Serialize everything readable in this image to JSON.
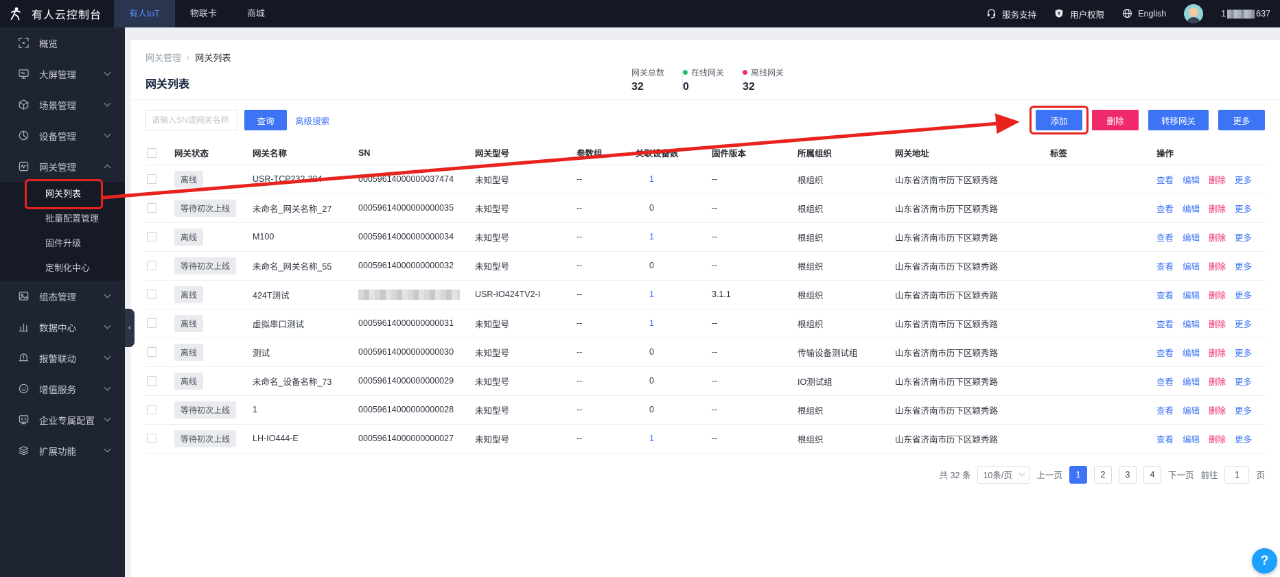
{
  "topbar": {
    "brand": "有人云控制台",
    "tabs": [
      {
        "label": "有人IoT",
        "active": true
      },
      {
        "label": "物联卡",
        "active": false
      },
      {
        "label": "商城",
        "active": false
      }
    ],
    "links": [
      {
        "label": "服务支持",
        "icon": "headset-icon"
      },
      {
        "label": "用户权限",
        "icon": "shield-icon"
      },
      {
        "label": "English",
        "icon": "globe-icon"
      }
    ],
    "user": {
      "phone_prefix": "1",
      "phone_suffix": "637",
      "phone_masked": true
    }
  },
  "sidebar": {
    "items": [
      {
        "id": "overview",
        "label": "概览",
        "icon": "overview-icon",
        "children": null
      },
      {
        "id": "bigscreen",
        "label": "大屏管理",
        "icon": "screen-icon",
        "children": null,
        "collapsible": true
      },
      {
        "id": "scene",
        "label": "场景管理",
        "icon": "scene-icon",
        "children": null,
        "collapsible": true
      },
      {
        "id": "device",
        "label": "设备管理",
        "icon": "device-icon",
        "children": null,
        "collapsible": true
      },
      {
        "id": "gateway",
        "label": "网关管理",
        "icon": "gateway-icon",
        "expanded": true,
        "collapsible": true,
        "children": [
          {
            "id": "gateway-list",
            "label": "网关列表",
            "active": true,
            "annotated": true
          },
          {
            "id": "batch-config",
            "label": "批量配置管理"
          },
          {
            "id": "firmware-upgrade",
            "label": "固件升级"
          },
          {
            "id": "custom-center",
            "label": "定制化中心"
          }
        ]
      },
      {
        "id": "scada",
        "label": "组态管理",
        "icon": "scada-icon",
        "children": null,
        "collapsible": true
      },
      {
        "id": "data-center",
        "label": "数据中心",
        "icon": "data-icon",
        "children": null,
        "collapsible": true
      },
      {
        "id": "alarm",
        "label": "报警联动",
        "icon": "alarm-icon",
        "children": null,
        "collapsible": true
      },
      {
        "id": "vas",
        "label": "增值服务",
        "icon": "vas-icon",
        "children": null,
        "collapsible": true
      },
      {
        "id": "enterprise",
        "label": "企业专属配置",
        "icon": "enterprise-icon",
        "children": null,
        "collapsible": true
      },
      {
        "id": "extension",
        "label": "扩展功能",
        "icon": "extension-icon",
        "children": null,
        "collapsible": true
      }
    ]
  },
  "breadcrumb": {
    "parent": "网关管理",
    "current": "网关列表"
  },
  "page": {
    "title": "网关列表"
  },
  "stats": [
    {
      "label": "网关总数",
      "value": "32",
      "dot": "none"
    },
    {
      "label": "在线网关",
      "value": "0",
      "dot": "green"
    },
    {
      "label": "离线网关",
      "value": "32",
      "dot": "red"
    }
  ],
  "search": {
    "placeholder": "请输入SN或网关名称",
    "query_label": "查询",
    "advanced_label": "高级搜索"
  },
  "actions": {
    "items": [
      {
        "label": "添加",
        "style": "blue",
        "annotated": true
      },
      {
        "label": "删除",
        "style": "pink"
      },
      {
        "label": "转移网关",
        "style": "blue"
      },
      {
        "label": "更多",
        "style": "blue"
      }
    ]
  },
  "table": {
    "headers": [
      "网关状态",
      "网关名称",
      "SN",
      "网关型号",
      "参数组",
      "关联设备数",
      "固件版本",
      "所属组织",
      "网关地址",
      "标签",
      "操作"
    ],
    "row_actions": [
      {
        "label": "查看",
        "danger": false
      },
      {
        "label": "编辑",
        "danger": false
      },
      {
        "label": "删除",
        "danger": true
      },
      {
        "label": "更多",
        "danger": false
      }
    ],
    "rows": [
      {
        "status": "离线",
        "name": "USR-TCP232-304",
        "sn": "00059614000000037474",
        "sn_blurred": false,
        "model": "未知型号",
        "param": "--",
        "devices": "1",
        "devices_link": true,
        "firmware": "--",
        "org": "根组织",
        "address": "山东省济南市历下区颖秀路",
        "tags": ""
      },
      {
        "status": "等待初次上线",
        "name": "未命名_网关名称_27",
        "sn": "00059614000000000035",
        "sn_blurred": false,
        "model": "未知型号",
        "param": "--",
        "devices": "0",
        "devices_link": false,
        "firmware": "--",
        "org": "根组织",
        "address": "山东省济南市历下区颖秀路",
        "tags": ""
      },
      {
        "status": "离线",
        "name": "M100",
        "sn": "00059614000000000034",
        "sn_blurred": false,
        "model": "未知型号",
        "param": "--",
        "devices": "1",
        "devices_link": true,
        "firmware": "--",
        "org": "根组织",
        "address": "山东省济南市历下区颖秀路",
        "tags": ""
      },
      {
        "status": "等待初次上线",
        "name": "未命名_网关名称_55",
        "sn": "00059614000000000032",
        "sn_blurred": false,
        "model": "未知型号",
        "param": "--",
        "devices": "0",
        "devices_link": false,
        "firmware": "--",
        "org": "根组织",
        "address": "山东省济南市历下区颖秀路",
        "tags": ""
      },
      {
        "status": "离线",
        "name": "424T测试",
        "sn": "",
        "sn_blurred": true,
        "model": "USR-IO424TV2-I",
        "param": "--",
        "devices": "1",
        "devices_link": true,
        "firmware": "3.1.1",
        "org": "根组织",
        "address": "山东省济南市历下区颖秀路",
        "tags": ""
      },
      {
        "status": "离线",
        "name": "虚拟串口测试",
        "sn": "00059614000000000031",
        "sn_blurred": false,
        "model": "未知型号",
        "param": "--",
        "devices": "1",
        "devices_link": true,
        "firmware": "--",
        "org": "根组织",
        "address": "山东省济南市历下区颖秀路",
        "tags": ""
      },
      {
        "status": "离线",
        "name": "测试",
        "sn": "00059614000000000030",
        "sn_blurred": false,
        "model": "未知型号",
        "param": "--",
        "devices": "0",
        "devices_link": false,
        "firmware": "--",
        "org": "传输设备测试组",
        "address": "山东省济南市历下区颖秀路",
        "tags": ""
      },
      {
        "status": "离线",
        "name": "未命名_设备名称_73",
        "sn": "00059614000000000029",
        "sn_blurred": false,
        "model": "未知型号",
        "param": "--",
        "devices": "0",
        "devices_link": false,
        "firmware": "--",
        "org": "IO测试组",
        "address": "山东省济南市历下区颖秀路",
        "tags": ""
      },
      {
        "status": "等待初次上线",
        "name": "1",
        "sn": "00059614000000000028",
        "sn_blurred": false,
        "model": "未知型号",
        "param": "--",
        "devices": "0",
        "devices_link": false,
        "firmware": "--",
        "org": "根组织",
        "address": "山东省济南市历下区颖秀路",
        "tags": ""
      },
      {
        "status": "等待初次上线",
        "name": "LH-IO444-E",
        "sn": "00059614000000000027",
        "sn_blurred": false,
        "model": "未知型号",
        "param": "--",
        "devices": "1",
        "devices_link": true,
        "firmware": "--",
        "org": "根组织",
        "address": "山东省济南市历下区颖秀路",
        "tags": ""
      }
    ]
  },
  "pagination": {
    "total_label": "共 32 条",
    "page_size": "10条/页",
    "prev_label": "上一页",
    "next_label": "下一页",
    "pages": [
      "1",
      "2",
      "3",
      "4"
    ],
    "current_page": "1",
    "goto_label": "前往",
    "goto_value": "1",
    "page_unit": "页"
  },
  "help_label": "?",
  "colors": {
    "accent": "#3D73F5",
    "danger": "#F0296B",
    "annotation_red": "#E8231E",
    "online_green": "#1FC06A",
    "offline_red": "#ED2D5F"
  }
}
